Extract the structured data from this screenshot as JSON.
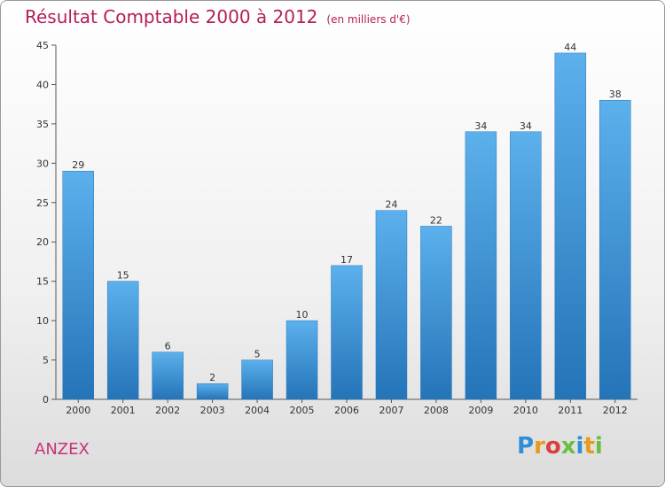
{
  "title": "Résultat Comptable 2000 à 2012",
  "subtitle": "(en milliers d'€)",
  "commune": "ANZEX",
  "logo": {
    "letters": [
      "P",
      "r",
      "o",
      "x",
      "i",
      "t",
      "i"
    ],
    "colors": [
      "#2e8fd6",
      "#e89a1a",
      "#d94040",
      "#6abf40",
      "#2e8fd6",
      "#e89a1a",
      "#6abf40"
    ]
  },
  "chart_data": {
    "type": "bar",
    "title": "Résultat Comptable 2000 à 2012",
    "xlabel": "",
    "ylabel": "",
    "ylim": [
      0,
      45
    ],
    "yticks": [
      0,
      5,
      10,
      15,
      20,
      25,
      30,
      35,
      40,
      45
    ],
    "grid": false,
    "categories": [
      "2000",
      "2001",
      "2002",
      "2003",
      "2004",
      "2005",
      "2006",
      "2007",
      "2008",
      "2009",
      "2010",
      "2011",
      "2012"
    ],
    "values": [
      29,
      15,
      6,
      2,
      5,
      10,
      17,
      24,
      22,
      34,
      34,
      44,
      38
    ],
    "bar_color": "#3a8fd8"
  }
}
